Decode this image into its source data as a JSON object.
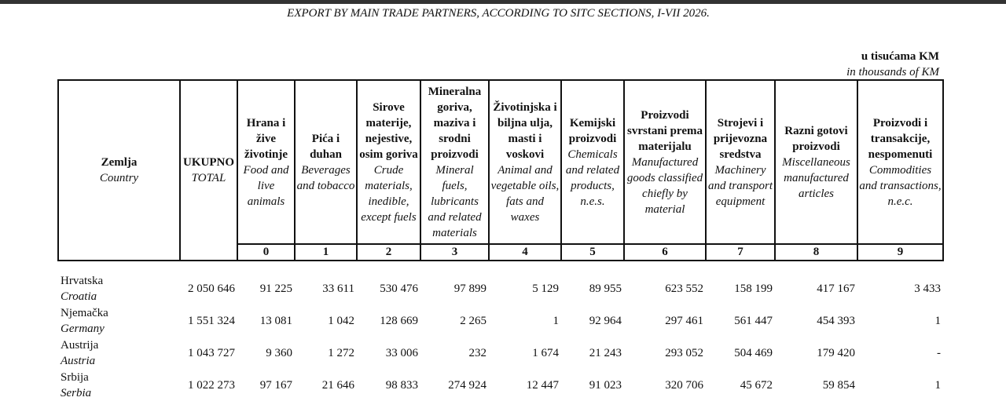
{
  "title": "EXPORT BY MAIN TRADE PARTNERS, ACCORDING TO SITC SECTIONS, I-VII 2026.",
  "unit": {
    "local": "u tisućama KM",
    "english": "in thousands of KM"
  },
  "table": {
    "columns": [
      {
        "local": "Zemlja",
        "english": "Country"
      },
      {
        "local": "UKUPNO",
        "english": "TOTAL"
      },
      {
        "local": "Hrana i žive životinje",
        "english": "Food and live animals"
      },
      {
        "local": "Pića i duhan",
        "english": "Beverages and tobacco"
      },
      {
        "local": "Sirove materije, nejestive, osim goriva",
        "english": "Crude materials, inedible, except fuels"
      },
      {
        "local": "Mineralna goriva, maziva i srodni proizvodi",
        "english": "Mineral fuels, lubricants and related materials"
      },
      {
        "local": "Životinjska i biljna ulja, masti i voskovi",
        "english": "Animal and vegetable oils, fats and waxes"
      },
      {
        "local": "Kemijski proizvodi",
        "english": "Chemicals and related products, n.e.s."
      },
      {
        "local": "Proizvodi svrstani prema materijalu",
        "english": "Manufactured goods classified chiefly by material"
      },
      {
        "local": "Strojevi i prijevozna sredstva",
        "english": "Machinery and transport equipment"
      },
      {
        "local": "Razni gotovi proizvodi",
        "english": "Miscellaneous manufactured articles"
      },
      {
        "local": "Proizvodi i transakcije, nespomenuti",
        "english": "Commodities and transactions, n.e.c."
      }
    ],
    "codes": [
      "0",
      "1",
      "2",
      "3",
      "4",
      "5",
      "6",
      "7",
      "8",
      "9"
    ],
    "rows": [
      {
        "country": "Hrvatska",
        "country_en": "Croatia",
        "values": [
          "2 050 646",
          "91 225",
          "33 611",
          "530 476",
          "97 899",
          "5 129",
          "89 955",
          "623 552",
          "158 199",
          "417 167",
          "3 433"
        ]
      },
      {
        "country": "Njemačka",
        "country_en": "Germany",
        "values": [
          "1 551 324",
          "13 081",
          "1 042",
          "128 669",
          "2 265",
          "1",
          "92 964",
          "297 461",
          "561 447",
          "454 393",
          "1"
        ]
      },
      {
        "country": "Austrija",
        "country_en": "Austria",
        "values": [
          "1 043 727",
          "9 360",
          "1 272",
          "33 006",
          "232",
          "1 674",
          "21 243",
          "293 052",
          "504 469",
          "179 420",
          "-"
        ]
      },
      {
        "country": "Srbija",
        "country_en": "Serbia",
        "values": [
          "1 022 273",
          "97 167",
          "21 646",
          "98 833",
          "274 924",
          "12 447",
          "91 023",
          "320 706",
          "45 672",
          "59 854",
          "1"
        ]
      }
    ]
  }
}
